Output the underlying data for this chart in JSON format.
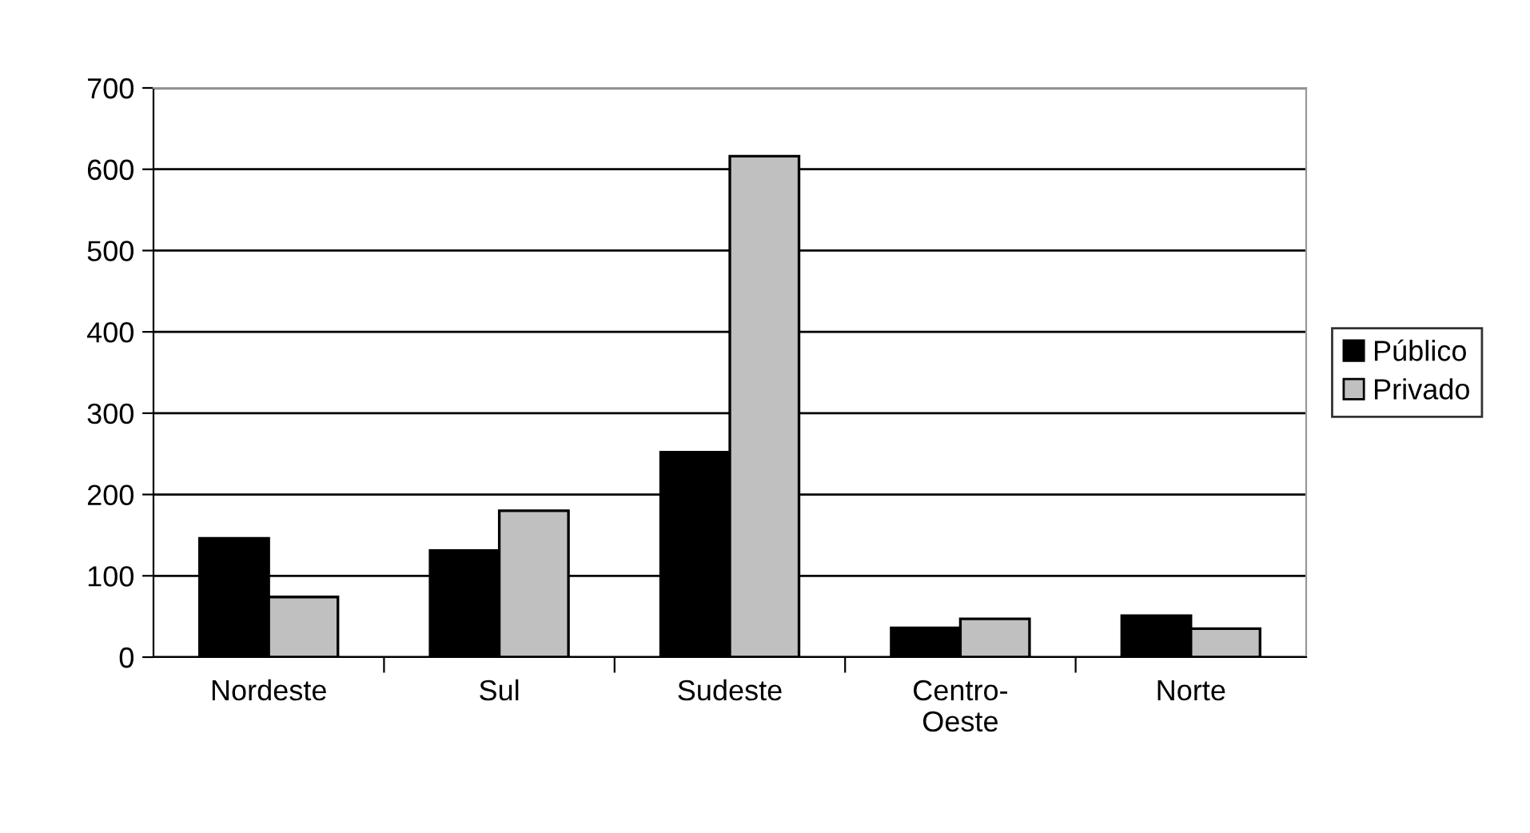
{
  "chart_data": {
    "type": "bar",
    "categories": [
      "Nordeste",
      "Sul",
      "Sudeste",
      "Centro-Oeste",
      "Norte"
    ],
    "series": [
      {
        "name": "Público",
        "color": "#000000",
        "values": [
          146,
          131,
          252,
          36,
          51
        ]
      },
      {
        "name": "Privado",
        "color": "#c0c0c0",
        "values": [
          74,
          180,
          616,
          47,
          35
        ]
      }
    ],
    "ylim": [
      0,
      700
    ],
    "yticks": [
      0,
      100,
      200,
      300,
      400,
      500,
      600,
      700
    ],
    "grid": "y",
    "legend": "right"
  }
}
